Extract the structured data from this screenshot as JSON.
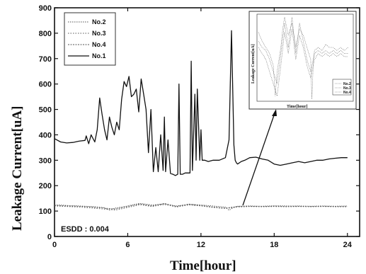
{
  "chart_data": {
    "type": "line",
    "xlabel": "Time[hour]",
    "ylabel": "Leakage Current[uA]",
    "xlim": [
      0,
      25
    ],
    "ylim": [
      0,
      900
    ],
    "xticks": [
      0,
      6,
      12,
      18,
      24
    ],
    "yticks": [
      0,
      100,
      200,
      300,
      400,
      500,
      600,
      700,
      800,
      900
    ],
    "annotation": "ESDD : 0.004",
    "legend_position": "top-left",
    "series": [
      {
        "name": "No.2",
        "style": "dotted",
        "x": [
          0,
          1,
          2,
          3,
          4,
          4.5,
          5,
          6,
          6.5,
          7,
          8,
          9,
          10,
          11,
          12,
          13,
          14,
          14.3,
          14.7,
          15,
          16,
          17,
          18,
          19,
          20,
          21,
          22,
          23,
          24
        ],
        "y": [
          125,
          122,
          120,
          118,
          114,
          104,
          112,
          120,
          126,
          130,
          124,
          128,
          120,
          126,
          124,
          120,
          116,
          103,
          115,
          119,
          120,
          119,
          121,
          120,
          120,
          119,
          120,
          119,
          120
        ]
      },
      {
        "name": "No.3",
        "style": "dotted",
        "x": [
          0,
          1,
          2,
          3,
          4,
          5,
          6,
          7,
          8,
          9,
          10,
          11,
          12,
          13,
          14,
          15,
          16,
          17,
          18,
          19,
          20,
          21,
          22,
          23,
          24
        ],
        "y": [
          120,
          118,
          116,
          112,
          108,
          104,
          114,
          125,
          118,
          126,
          116,
          124,
          120,
          114,
          110,
          116,
          118,
          117,
          118,
          117,
          118,
          117,
          118,
          117,
          117
        ]
      },
      {
        "name": "No.4",
        "style": "dotted",
        "x": [
          0,
          1,
          2,
          3,
          4,
          5,
          6,
          7,
          8,
          9,
          10,
          11,
          12,
          13,
          14,
          15,
          16,
          17,
          18,
          19,
          20,
          21,
          22,
          23,
          24
        ],
        "y": [
          122,
          120,
          119,
          116,
          112,
          108,
          118,
          128,
          120,
          130,
          118,
          128,
          122,
          116,
          112,
          118,
          119,
          118,
          119,
          118,
          119,
          118,
          119,
          118,
          118
        ]
      },
      {
        "name": "No.1",
        "style": "solid",
        "x": [
          0,
          0.5,
          1,
          1.5,
          2,
          2.5,
          2.6,
          2.8,
          3,
          3.3,
          3.5,
          3.7,
          3.9,
          4.1,
          4.3,
          4.5,
          4.7,
          4.9,
          5.1,
          5.3,
          5.5,
          5.7,
          5.9,
          6.1,
          6.3,
          6.5,
          6.7,
          6.9,
          7.1,
          7.3,
          7.5,
          7.7,
          7.9,
          8.1,
          8.3,
          8.5,
          8.7,
          8.9,
          9.0,
          9.1,
          9.3,
          9.5,
          9.7,
          9.9,
          10.1,
          10.2,
          10.3,
          10.5,
          10.7,
          10.9,
          11.1,
          11.2,
          11.3,
          11.5,
          11.6,
          11.7,
          11.9,
          12.0,
          12.1,
          12.3,
          12.6,
          13.0,
          13.5,
          14.0,
          14.3,
          14.5,
          14.7,
          14.8,
          14.9,
          15.0,
          15.3,
          15.6,
          16,
          16.5,
          17,
          17.5,
          18,
          18.5,
          19,
          19.5,
          20,
          20.5,
          21,
          21.5,
          22,
          22.5,
          23,
          23.5,
          24
        ],
        "y": [
          385,
          372,
          368,
          370,
          375,
          378,
          396,
          365,
          400,
          372,
          420,
          545,
          480,
          420,
          380,
          470,
          430,
          400,
          450,
          420,
          540,
          610,
          590,
          630,
          550,
          560,
          580,
          490,
          620,
          560,
          500,
          330,
          500,
          255,
          350,
          255,
          400,
          260,
          470,
          255,
          380,
          248,
          245,
          240,
          245,
          600,
          245,
          245,
          250,
          250,
          250,
          690,
          260,
          560,
          300,
          580,
          300,
          420,
          300,
          300,
          295,
          300,
          300,
          310,
          380,
          810,
          360,
          300,
          290,
          285,
          295,
          300,
          310,
          312,
          305,
          300,
          285,
          280,
          285,
          290,
          295,
          290,
          295,
          300,
          300,
          305,
          308,
          310,
          310
        ]
      }
    ],
    "inset": {
      "xlabel": "Time[hour]",
      "ylabel": "Leakage Current[uA]",
      "legend": [
        "No.2",
        "No.3",
        "No.4"
      ]
    }
  }
}
